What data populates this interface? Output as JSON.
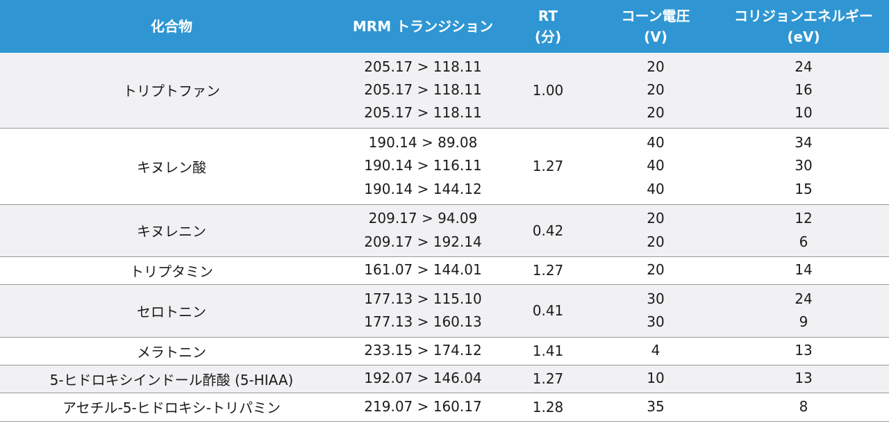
{
  "header": {
    "compound": "化合物",
    "mrm": "MRM トランジション",
    "rt_line1": "RT",
    "rt_line2": "(分)",
    "cone_line1": "コーン電圧",
    "cone_line2": "(V)",
    "ce_line1": "コリジョンエネルギー",
    "ce_line2": "(eV)"
  },
  "rows": [
    {
      "compound": "トリプトファン",
      "rt": "1.00",
      "transitions": [
        "205.17 > 118.11",
        "205.17 > 118.11",
        "205.17 > 118.11"
      ],
      "cone": [
        "20",
        "20",
        "20"
      ],
      "ce": [
        "24",
        "16",
        "10"
      ]
    },
    {
      "compound": "キヌレン酸",
      "rt": "1.27",
      "transitions": [
        "190.14 > 89.08",
        "190.14 > 116.11",
        "190.14 > 144.12"
      ],
      "cone": [
        "40",
        "40",
        "40"
      ],
      "ce": [
        "34",
        "30",
        "15"
      ]
    },
    {
      "compound": "キヌレニン",
      "rt": "0.42",
      "transitions": [
        "209.17 > 94.09",
        "209.17 > 192.14"
      ],
      "cone": [
        "20",
        "20"
      ],
      "ce": [
        "12",
        "6"
      ]
    },
    {
      "compound": "トリプタミン",
      "rt": "1.27",
      "transitions": [
        "161.07 > 144.01"
      ],
      "cone": [
        "20"
      ],
      "ce": [
        "14"
      ]
    },
    {
      "compound": "セロトニン",
      "rt": "0.41",
      "transitions": [
        "177.13 > 115.10",
        "177.13 > 160.13"
      ],
      "cone": [
        "30",
        "30"
      ],
      "ce": [
        "24",
        "9"
      ]
    },
    {
      "compound": "メラトニン",
      "rt": "1.41",
      "transitions": [
        "233.15 > 174.12"
      ],
      "cone": [
        "4"
      ],
      "ce": [
        "13"
      ]
    },
    {
      "compound": "5-ヒドロキシインドール酢酸 (5-HIAA)",
      "rt": "1.27",
      "transitions": [
        "192.07 > 146.04"
      ],
      "cone": [
        "10"
      ],
      "ce": [
        "13"
      ]
    },
    {
      "compound": "アセチル-5-ヒドロキシ-トリパミン",
      "rt": "1.28",
      "transitions": [
        "219.07 > 160.17"
      ],
      "cone": [
        "35"
      ],
      "ce": [
        "8"
      ]
    }
  ]
}
